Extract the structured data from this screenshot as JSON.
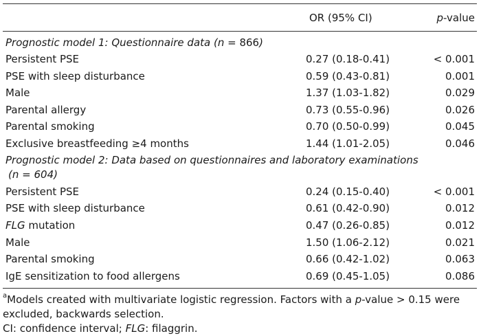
{
  "header": {
    "col_or": "OR (95% CI)",
    "col_p_italic": "p",
    "col_p_rest": "-value"
  },
  "model1": {
    "title_italic": "Prognostic model 1: Questionnaire data (",
    "title_n_label": "n",
    "title_n_value": " = 866",
    "title_close": ")",
    "rows": [
      {
        "label": "Persistent PSE",
        "or": "0.27 (0.18-0.41)",
        "p": "< 0.001"
      },
      {
        "label": "PSE with sleep disturbance",
        "or": "0.59 (0.43-0.81)",
        "p": "0.001"
      },
      {
        "label": "Male",
        "or": "1.37 (1.03-1.82)",
        "p": "0.029"
      },
      {
        "label": "Parental allergy",
        "or": "0.73 (0.55-0.96)",
        "p": "0.026"
      },
      {
        "label": "Parental smoking",
        "or": "0.70 (0.50-0.99)",
        "p": "0.045"
      },
      {
        "label": "Exclusive breastfeeding ≥4 months",
        "or": "1.44 (1.01-2.05)",
        "p": "0.046"
      }
    ]
  },
  "model2": {
    "title_line1": "Prognostic model 2: Data based on questionnaires and laboratory examinations",
    "title_line2_open": "(",
    "title_n_label": "n",
    "title_n_value": " = 604)",
    "rows": [
      {
        "label": "Persistent PSE",
        "or": "0.24 (0.15-0.40)",
        "p": "< 0.001"
      },
      {
        "label": "PSE with sleep disturbance",
        "or": "0.61 (0.42-0.90)",
        "p": "0.012"
      },
      {
        "label_italic": "FLG",
        "label_rest": " mutation",
        "or": "0.47 (0.26-0.85)",
        "p": "0.012"
      },
      {
        "label": "Male",
        "or": "1.50 (1.06-2.12)",
        "p": "0.021"
      },
      {
        "label": "Parental smoking",
        "or": "0.66 (0.42-1.02)",
        "p": "0.063"
      },
      {
        "label": "IgE sensitization to food allergens",
        "or": "0.69 (0.45-1.05)",
        "p": "0.086"
      }
    ]
  },
  "footnotes": {
    "sup": "a",
    "note_a_part1": "Models created with multivariate logistic regression. Factors with a ",
    "note_a_italic": "p",
    "note_a_part2": "-value > 0.15 were excluded, backwards selection.",
    "abbr_part1": "CI: confidence interval; ",
    "abbr_italic": "FLG",
    "abbr_part2": ": filaggrin."
  }
}
